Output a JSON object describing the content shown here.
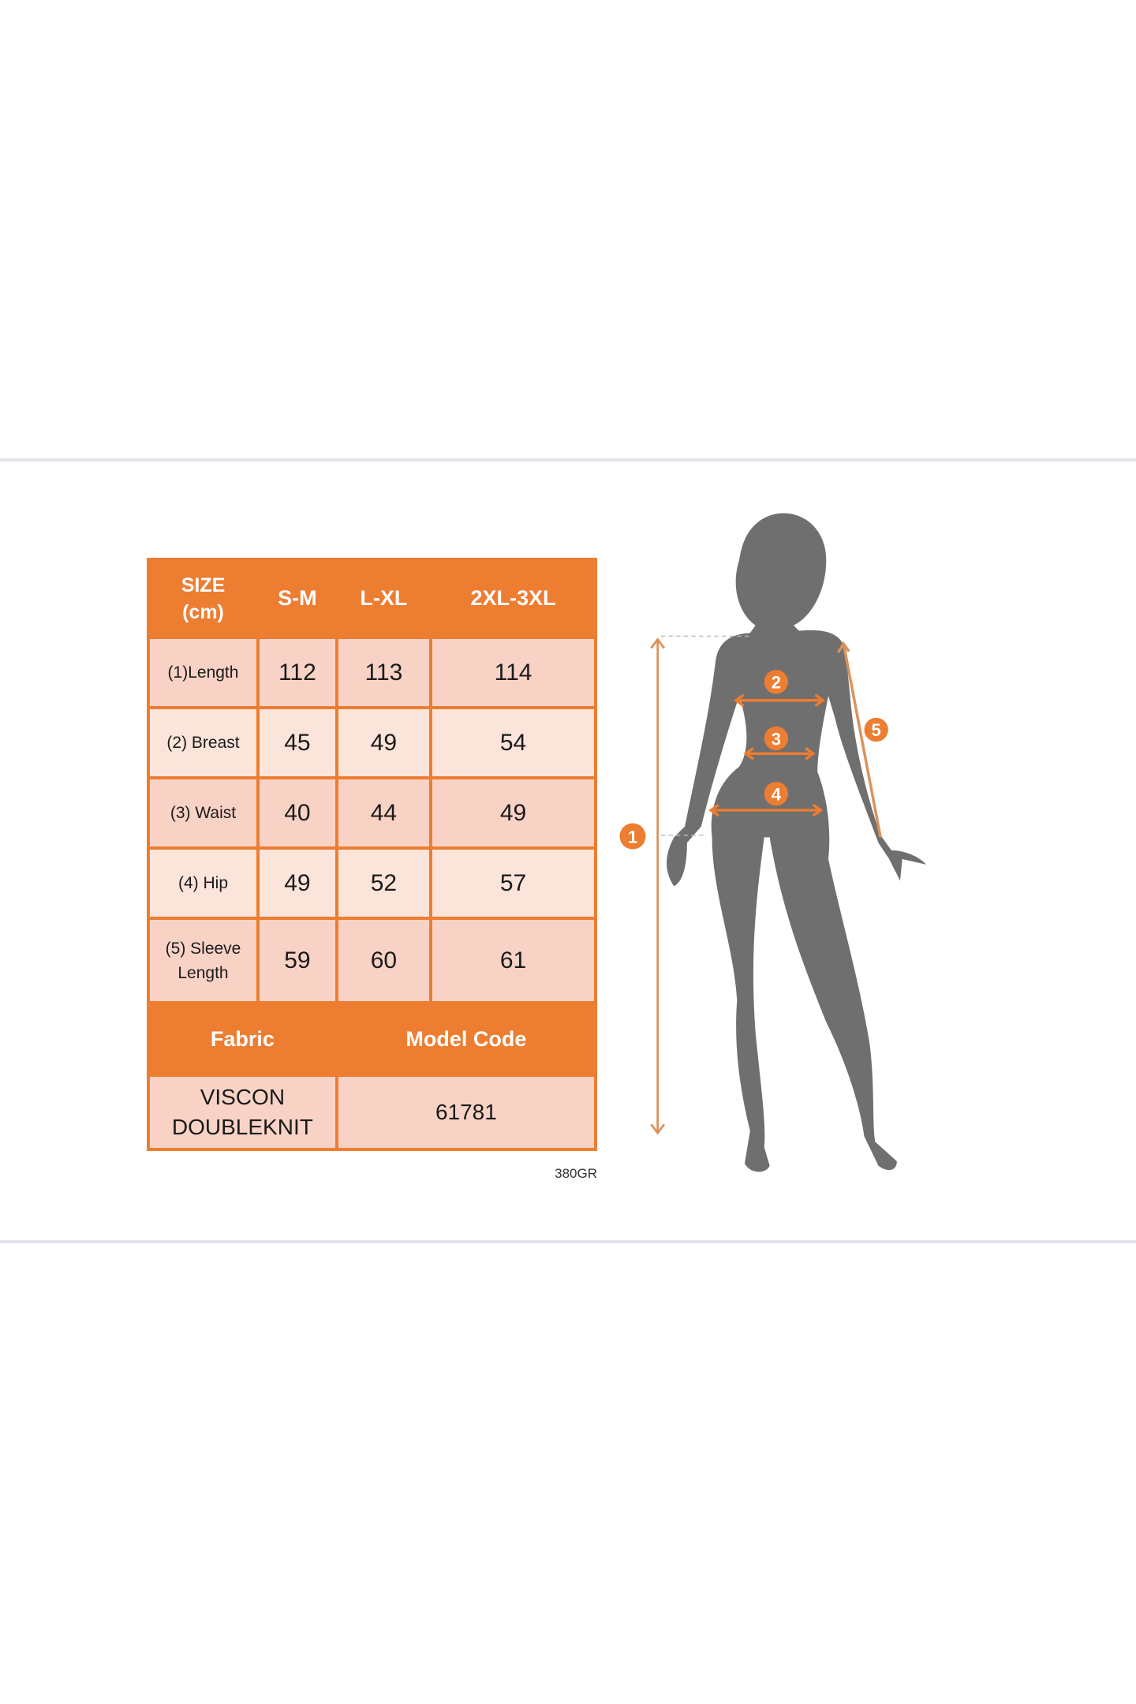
{
  "size_table": {
    "header": {
      "size_label_line1": "SIZE",
      "size_label_line2": "(cm)",
      "sizes": [
        "S-M",
        "L-XL",
        "2XL-3XL"
      ]
    },
    "rows": [
      {
        "label": "(1)Length",
        "values": [
          "112",
          "113",
          "114"
        ]
      },
      {
        "label": "(2) Breast",
        "values": [
          "45",
          "49",
          "54"
        ]
      },
      {
        "label": "(3) Waist",
        "values": [
          "40",
          "44",
          "49"
        ]
      },
      {
        "label": "(4) Hip",
        "values": [
          "49",
          "52",
          "57"
        ]
      },
      {
        "label_line1": "(5) Sleeve",
        "label_line2": "Length",
        "values": [
          "59",
          "60",
          "61"
        ]
      }
    ],
    "fabric_header": "Fabric",
    "model_code_header": "Model Code",
    "fabric_line1": "VISCON",
    "fabric_line2": "DOUBLEKNIT",
    "model_code": "61781",
    "note": "380GR"
  },
  "figure": {
    "markers": [
      "1",
      "2",
      "3",
      "4",
      "5"
    ]
  },
  "colors": {
    "accent": "#ed7d31",
    "cell_dark": "#f8d3c5",
    "cell_light": "#fbe4da",
    "silhouette": "#6f6f6f"
  }
}
